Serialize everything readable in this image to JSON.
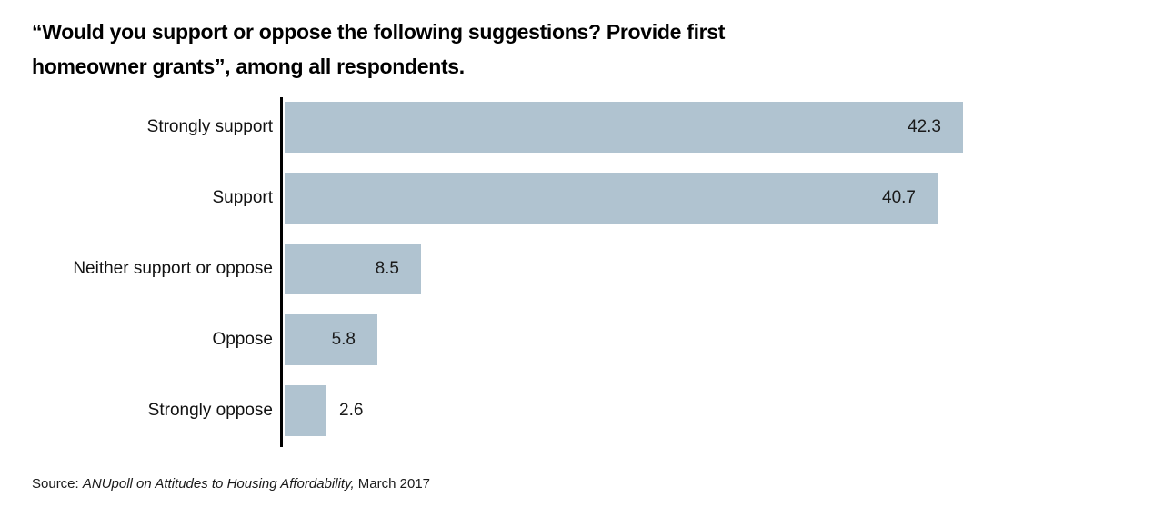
{
  "header": {
    "title_line1": "“Would you support or oppose the following suggestions? Provide first",
    "title_line2": "homeowner grants”, among all respondents."
  },
  "source": {
    "prefix": "Source: ",
    "citation": "ANUpoll on Attitudes to Housing Affordability,",
    "suffix": " March 2017"
  },
  "chart_data": {
    "type": "bar",
    "orientation": "horizontal",
    "title": "“Would you support or oppose the following suggestions? Provide first homeowner grants”, among all respondents.",
    "categories": [
      "Strongly support",
      "Support",
      "Neither support or oppose",
      "Oppose",
      "Strongly oppose"
    ],
    "values": [
      42.3,
      40.7,
      8.5,
      5.8,
      2.6
    ],
    "value_label_decimals": 1,
    "xlabel": "",
    "ylabel": "",
    "xlim": [
      0,
      45
    ],
    "gridlines": false,
    "legend": false,
    "bar_color": "#b0c3d0",
    "axis_color": "#000000",
    "text_color": "#1a1a1a"
  }
}
